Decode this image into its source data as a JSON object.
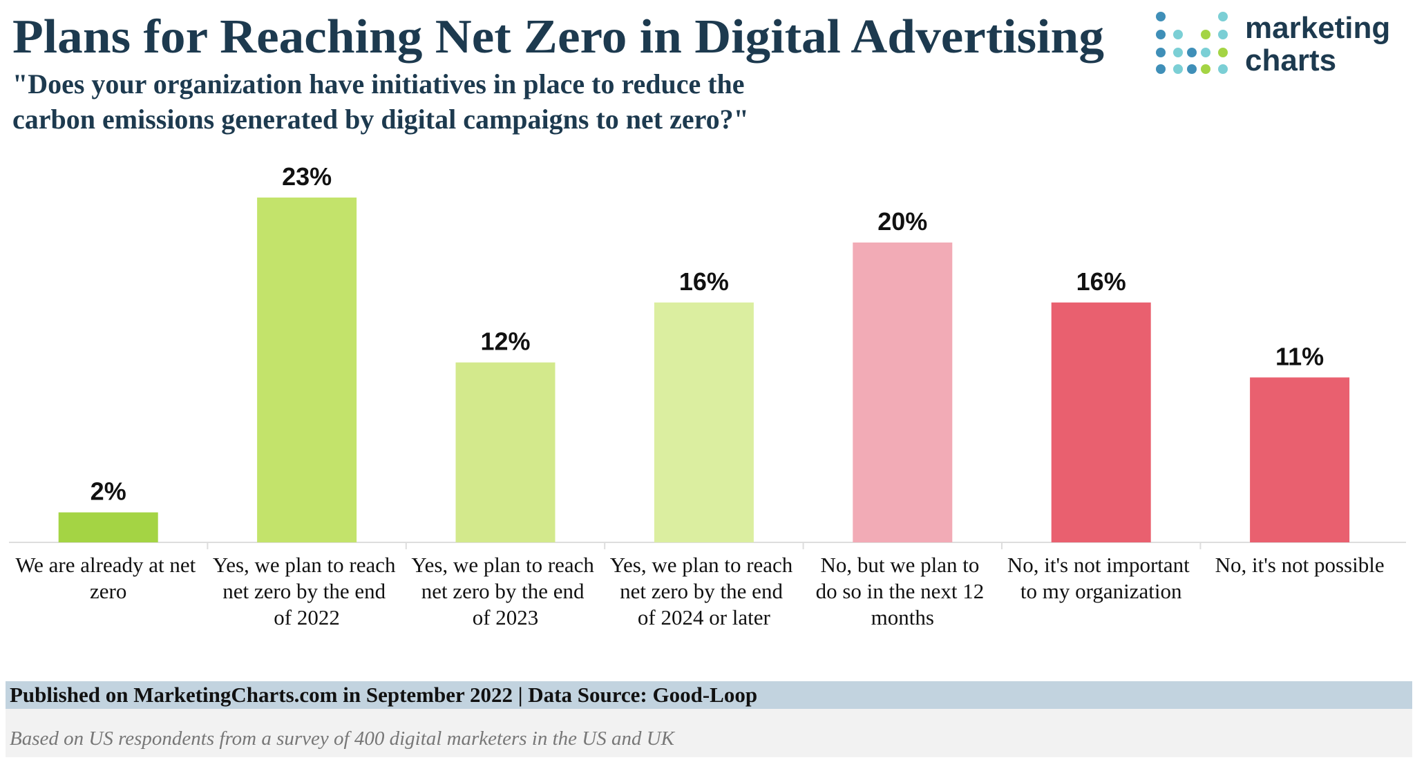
{
  "chart_data": {
    "type": "bar",
    "title": "Plans for Reaching Net Zero in Digital Advertising",
    "subtitle": [
      "\"Does your organization have initiatives in place to reduce the",
      "carbon emissions generated by digital campaigns to net zero?\""
    ],
    "logo": [
      "marketing",
      "charts"
    ],
    "categories": [
      "We are already at net zero",
      "Yes, we plan to reach net zero by the end of 2022",
      "Yes, we plan to reach net zero by the end of 2023",
      "Yes, we plan to reach net zero by the end of 2024 or later",
      "No, but we plan to do so in the next 12 months",
      "No, it's not important to my organization",
      "No, it's not possible"
    ],
    "values": [
      2,
      23,
      12,
      16,
      20,
      16,
      11
    ],
    "value_labels": [
      "2%",
      "23%",
      "12%",
      "16%",
      "20%",
      "16%",
      "11%"
    ],
    "colors": [
      "#a4d444",
      "#c3e36b",
      "#d3e98c",
      "#dbeea0",
      "#f2abb6",
      "#e9606f",
      "#e9606f"
    ],
    "footer": "Published on MarketingCharts.com in September 2022 | Data Source: Good-Loop",
    "note": "Based on US respondents from a survey of 400 digital marketers in the US and UK"
  }
}
